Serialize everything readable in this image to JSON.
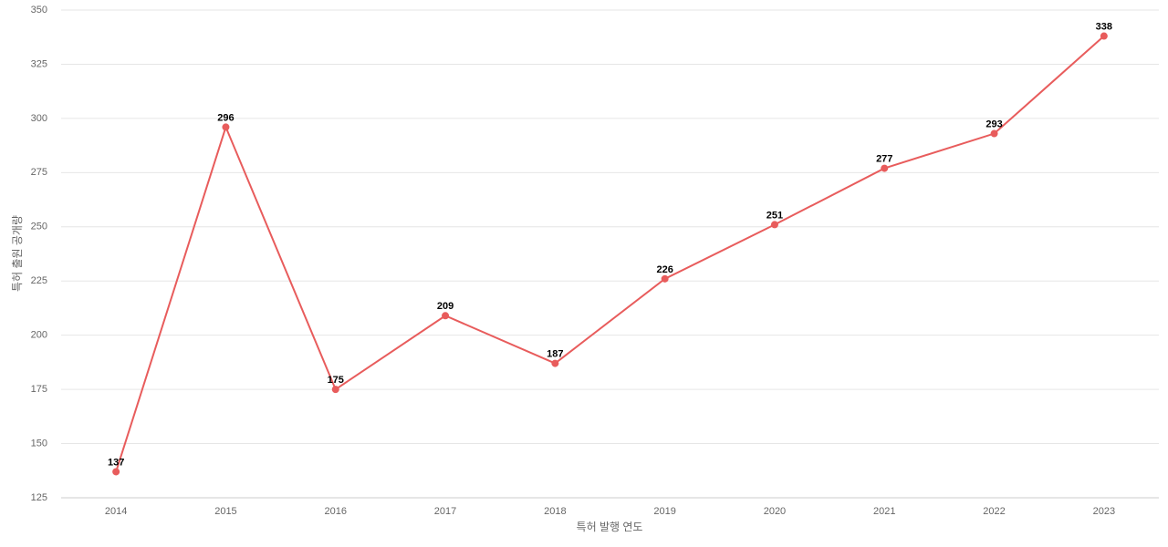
{
  "chart_data": {
    "type": "line",
    "xlabel": "특허 발행 연도",
    "ylabel": "특허 출원 공개량",
    "categories": [
      "2014",
      "2015",
      "2016",
      "2017",
      "2018",
      "2019",
      "2020",
      "2021",
      "2022",
      "2023"
    ],
    "series": [
      {
        "name": "특허 출원 공개량",
        "color": "#e85c5c",
        "values": [
          137,
          296,
          175,
          209,
          187,
          226,
          251,
          277,
          293,
          338
        ]
      }
    ],
    "ylim": [
      125,
      350
    ],
    "yticks": [
      125,
      150,
      175,
      200,
      225,
      250,
      275,
      300,
      325,
      350
    ],
    "grid": true
  }
}
